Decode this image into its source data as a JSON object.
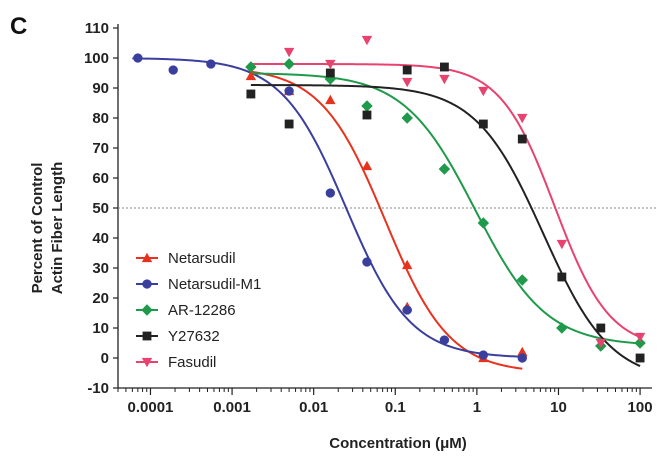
{
  "panel_label": "C",
  "chart_data": {
    "type": "scatter",
    "title": "",
    "xlabel": "Concentration (μM)",
    "ylabel_lines": [
      "Percent  of  Control",
      "Actin Fiber Length"
    ],
    "x_scale": "log",
    "xlim": [
      4e-05,
      140
    ],
    "ylim": [
      -10,
      110
    ],
    "x_ticks": [
      0.0001,
      0.001,
      0.01,
      0.1,
      1,
      10,
      100
    ],
    "x_tick_labels": [
      "0.0001",
      "0.001",
      "0.01",
      "0.1",
      "1",
      "10",
      "100"
    ],
    "y_ticks": [
      -10,
      0,
      10,
      20,
      30,
      40,
      50,
      60,
      70,
      80,
      90,
      100,
      110
    ],
    "y_tick_labels": [
      "-10",
      "0",
      "10",
      "20",
      "30",
      "40",
      "50",
      "60",
      "70",
      "80",
      "90",
      "100",
      "110"
    ],
    "reference_line_y": 50,
    "legend_position": "bottom-left",
    "series": [
      {
        "name": "Netarsudil",
        "color": "#e8321e",
        "marker": "triangle-up",
        "points": [
          [
            0.0017,
            94
          ],
          [
            0.005,
            89
          ],
          [
            0.016,
            86
          ],
          [
            0.045,
            64
          ],
          [
            0.14,
            31
          ],
          [
            0.14,
            17
          ],
          [
            1.2,
            0
          ],
          [
            3.6,
            2
          ]
        ],
        "fit": {
          "top": 97,
          "bottom": -5,
          "ic50": 0.075,
          "hill": 1.1,
          "xrange": [
            0.0017,
            3.6
          ]
        }
      },
      {
        "name": "Netarsudil-M1",
        "color": "#3a3f9e",
        "marker": "circle",
        "points": [
          [
            7e-05,
            100
          ],
          [
            0.00019,
            96
          ],
          [
            0.00055,
            98
          ],
          [
            0.005,
            89
          ],
          [
            0.016,
            55
          ],
          [
            0.045,
            32
          ],
          [
            0.14,
            16
          ],
          [
            0.4,
            6
          ],
          [
            1.2,
            1
          ],
          [
            3.6,
            0
          ]
        ],
        "fit": {
          "top": 100,
          "bottom": 0,
          "ic50": 0.025,
          "hill": 1.1,
          "xrange": [
            6e-05,
            3.6
          ]
        }
      },
      {
        "name": "AR-12286",
        "color": "#1e9a4a",
        "marker": "diamond",
        "points": [
          [
            0.0017,
            97
          ],
          [
            0.005,
            98
          ],
          [
            0.016,
            93
          ],
          [
            0.045,
            84
          ],
          [
            0.14,
            80
          ],
          [
            0.4,
            63
          ],
          [
            1.2,
            45
          ],
          [
            3.6,
            26
          ],
          [
            11,
            10
          ],
          [
            33,
            4
          ],
          [
            100,
            5
          ]
        ],
        "fit": {
          "top": 95,
          "bottom": 4,
          "ic50": 0.95,
          "hill": 1.0,
          "xrange": [
            0.0017,
            100
          ]
        }
      },
      {
        "name": "Y27632",
        "color": "#222222",
        "marker": "square",
        "points": [
          [
            0.0017,
            88
          ],
          [
            0.005,
            78
          ],
          [
            0.016,
            95
          ],
          [
            0.045,
            81
          ],
          [
            0.14,
            96
          ],
          [
            0.4,
            97
          ],
          [
            1.2,
            78
          ],
          [
            3.6,
            73
          ],
          [
            11,
            27
          ],
          [
            33,
            10
          ],
          [
            100,
            0
          ]
        ],
        "fit": {
          "top": 91,
          "bottom": -8,
          "ic50": 6.5,
          "hill": 1.05,
          "xrange": [
            0.0017,
            100
          ]
        }
      },
      {
        "name": "Fasudil",
        "color": "#e8426e",
        "marker": "triangle-down",
        "points": [
          [
            0.005,
            102
          ],
          [
            0.016,
            98
          ],
          [
            0.045,
            106
          ],
          [
            0.14,
            92
          ],
          [
            0.4,
            93
          ],
          [
            1.2,
            89
          ],
          [
            3.6,
            80
          ],
          [
            11,
            38
          ],
          [
            33,
            5
          ],
          [
            100,
            7
          ]
        ],
        "fit": {
          "top": 98,
          "bottom": 3,
          "ic50": 9.0,
          "hill": 1.3,
          "xrange": [
            0.0017,
            100
          ]
        }
      }
    ]
  }
}
